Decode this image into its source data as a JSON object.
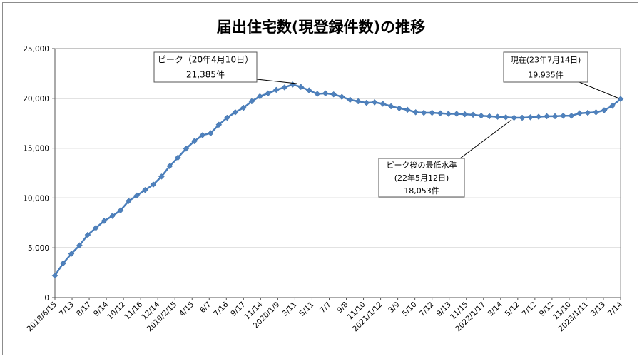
{
  "chart_data": {
    "type": "line",
    "title": "届出住宅数(現登録件数)の推移",
    "xlabel": "",
    "ylabel": "",
    "ylim": [
      0,
      25000
    ],
    "yticks": [
      0,
      5000,
      10000,
      15000,
      20000,
      25000
    ],
    "ytick_labels": [
      "0",
      "5,000",
      "10,000",
      "15,000",
      "20,000",
      "25,000"
    ],
    "grid": "horizontal",
    "legend": "none",
    "line_color": "#4a7ebb",
    "marker_color": "#4f81bd",
    "x_tick_labels": [
      "2018/6/15",
      "7/13",
      "8/17",
      "9/14",
      "10/12",
      "11/16",
      "12/14",
      "2019/2/15",
      "4/15",
      "6/7",
      "7/16",
      "9/17",
      "11/14",
      "2020/1/9",
      "3/11",
      "5/11",
      "7/7",
      "9/8",
      "11/10",
      "2021/1/12",
      "3/9",
      "5/10",
      "7/12",
      "9/13",
      "11/15",
      "2022/1/17",
      "3/14",
      "5/12",
      "7/12",
      "9/12",
      "11/10",
      "2023/1/11",
      "3/13",
      "7/14"
    ],
    "x_tick_points": [
      0,
      1,
      2,
      3,
      4,
      5,
      6,
      7,
      8,
      9,
      10,
      11,
      12,
      13,
      14,
      15,
      16,
      17,
      18,
      19,
      20,
      21,
      22,
      23,
      24,
      25,
      26,
      27,
      28,
      29,
      30,
      31,
      32,
      33
    ],
    "series": [
      {
        "values": [
          2210,
          3450,
          4400,
          5250,
          6300,
          7000,
          7700,
          8200,
          8750,
          9700,
          10250,
          10800,
          11350,
          12150,
          13200,
          14050,
          14950,
          15700,
          16300,
          16500,
          17350,
          18050,
          18600,
          19050,
          19700,
          20200,
          20500,
          20850,
          21100,
          21385,
          21150,
          20800,
          20450,
          20500,
          20400,
          20150,
          19850,
          19700,
          19550,
          19600,
          19450,
          19200,
          19000,
          18850,
          18600,
          18550,
          18550,
          18500,
          18450,
          18450,
          18400,
          18350,
          18250,
          18200,
          18150,
          18100,
          18053,
          18050,
          18100,
          18150,
          18200,
          18200,
          18250,
          18250,
          18500,
          18550,
          18600,
          18800,
          19250,
          19935
        ]
      }
    ],
    "annotations": [
      {
        "lines": [
          "ピーク（20年4月10日）",
          "21,385件"
        ],
        "point_index": 29,
        "value": 21385
      },
      {
        "lines": [
          "ピーク後の最低水準",
          "(22年5月12日)",
          "18,053件"
        ],
        "point_index": 56,
        "value": 18053
      },
      {
        "lines": [
          "現在(23年7月14日)",
          "19,935件"
        ],
        "point_index": 69,
        "value": 19935
      }
    ]
  }
}
